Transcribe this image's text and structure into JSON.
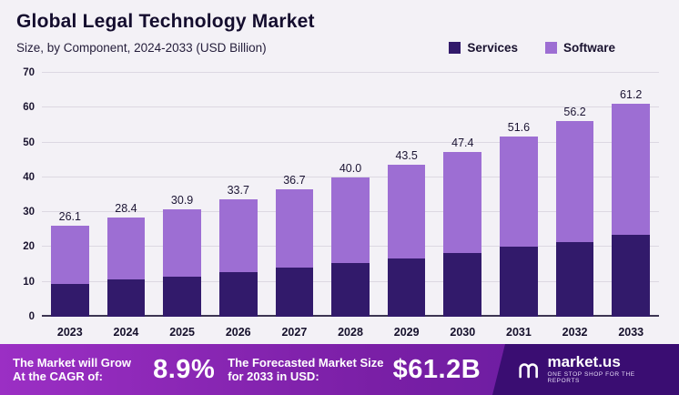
{
  "header": {
    "title": "Global Legal Technology Market",
    "subtitle": "Size, by Component, 2024-2033 (USD Billion)"
  },
  "legend": {
    "items": [
      {
        "label": "Services",
        "color": "#321a6b"
      },
      {
        "label": "Software",
        "color": "#9d6ed3"
      }
    ]
  },
  "chart_data": {
    "type": "bar",
    "stacked": true,
    "title": "Global Legal Technology Market",
    "subtitle": "Size, by Component, 2024-2033 (USD Billion)",
    "categories": [
      "2023",
      "2024",
      "2025",
      "2026",
      "2027",
      "2028",
      "2029",
      "2030",
      "2031",
      "2032",
      "2033"
    ],
    "series": [
      {
        "name": "Services",
        "color": "#321a6b",
        "values": [
          9.5,
          10.6,
          11.6,
          12.8,
          14.0,
          15.3,
          16.7,
          18.3,
          20.0,
          21.5,
          23.5
        ]
      },
      {
        "name": "Software",
        "color": "#9d6ed3",
        "values": [
          16.6,
          17.8,
          19.3,
          20.9,
          22.7,
          24.7,
          26.8,
          29.1,
          31.6,
          34.7,
          37.7
        ]
      }
    ],
    "totals": [
      "26.1",
      "28.4",
      "30.9",
      "33.7",
      "36.7",
      "40.0",
      "43.5",
      "47.4",
      "51.6",
      "56.2",
      "61.2"
    ],
    "xlabel": "",
    "ylabel": "",
    "ylim": [
      0,
      70
    ],
    "yticks": [
      0,
      10,
      20,
      30,
      40,
      50,
      60,
      70
    ],
    "grid": true,
    "legend_position": "top-right"
  },
  "footer": {
    "cagr_label": "The Market will Grow At the CAGR of:",
    "cagr_value": "8.9%",
    "forecast_label": "The Forecasted Market Size for 2033 in USD:",
    "forecast_value": "$61.2B",
    "brand": "market.us",
    "brand_tagline": "One Stop Shop for the Reports"
  }
}
